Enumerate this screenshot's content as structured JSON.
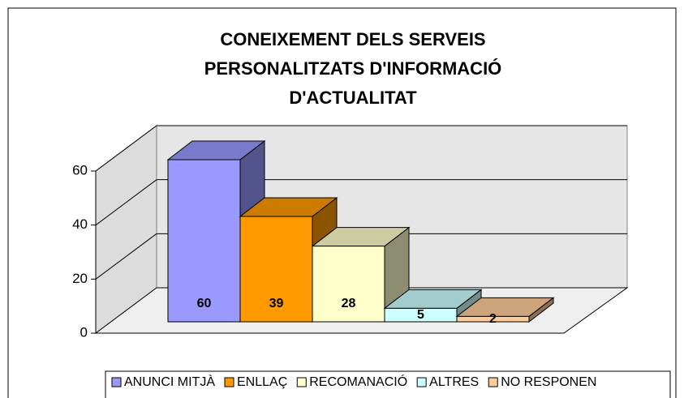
{
  "chart_data": {
    "type": "bar3d",
    "title": [
      "CONEIXEMENT DELS SERVEIS",
      "PERSONALITZATS D'INFORMACIÓ",
      "D'ACTUALITAT"
    ],
    "categories": [
      "ANUNCI MITJÀ",
      "ENLLAÇ",
      "RECOMANACIÓ",
      "ALTRES",
      "NO RESPONEN"
    ],
    "values": [
      60,
      39,
      28,
      5,
      2
    ],
    "colors": [
      "#9999ff",
      "#ff9900",
      "#ffffcc",
      "#ccffff",
      "#ffcc99"
    ],
    "ylim": [
      0,
      60
    ],
    "yticks": [
      0,
      20,
      40,
      60
    ],
    "grid": true,
    "legend": "bottom"
  }
}
